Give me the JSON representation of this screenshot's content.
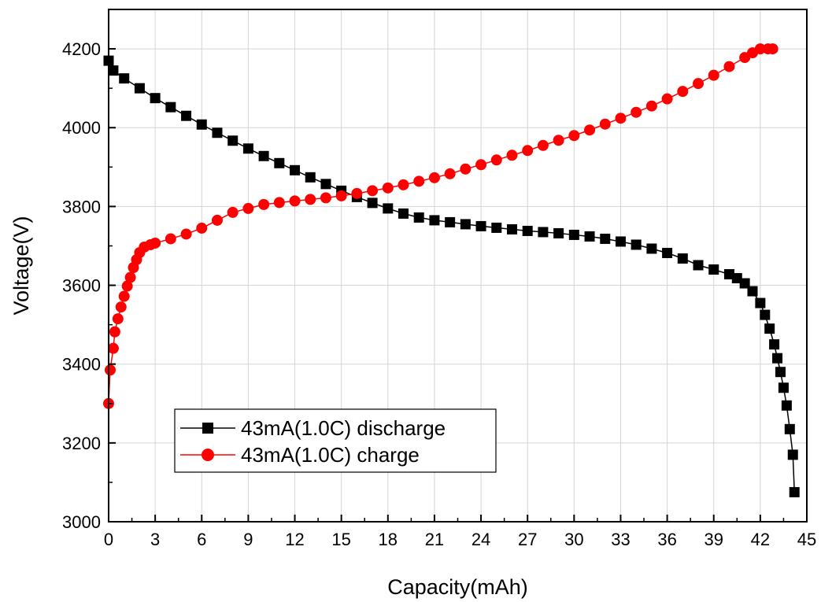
{
  "chart_data": {
    "type": "line",
    "title": "",
    "xlabel": "Capacity(mAh)",
    "ylabel": "Voltage(V)",
    "xlim": [
      0,
      45
    ],
    "ylim": [
      3000,
      4300
    ],
    "xticks": [
      0,
      3,
      6,
      9,
      12,
      15,
      18,
      21,
      24,
      27,
      30,
      33,
      36,
      39,
      42,
      45
    ],
    "yticks": [
      3000,
      3200,
      3400,
      3600,
      3800,
      4000,
      4200
    ],
    "grid": true,
    "legend_position": "bottom-left",
    "series": [
      {
        "name": "43mA(1.0C) discharge",
        "color": "#000000",
        "marker": "square",
        "x": [
          0,
          0.3,
          1,
          2,
          3,
          4,
          5,
          6,
          7,
          8,
          9,
          10,
          11,
          12,
          13,
          14,
          15,
          16,
          17,
          18,
          19,
          20,
          21,
          22,
          23,
          24,
          25,
          26,
          27,
          28,
          29,
          30,
          31,
          32,
          33,
          34,
          35,
          36,
          37,
          38,
          39,
          40,
          40.5,
          41,
          41.5,
          42,
          42.3,
          42.6,
          42.9,
          43.1,
          43.3,
          43.5,
          43.7,
          43.9,
          44.1,
          44.2
        ],
        "y": [
          4170,
          4145,
          4125,
          4100,
          4075,
          4052,
          4030,
          4008,
          3987,
          3967,
          3947,
          3928,
          3910,
          3892,
          3874,
          3857,
          3840,
          3824,
          3809,
          3795,
          3782,
          3772,
          3765,
          3760,
          3755,
          3750,
          3746,
          3742,
          3738,
          3735,
          3732,
          3728,
          3724,
          3718,
          3711,
          3703,
          3693,
          3682,
          3668,
          3651,
          3640,
          3628,
          3618,
          3605,
          3585,
          3555,
          3525,
          3490,
          3450,
          3415,
          3380,
          3340,
          3295,
          3235,
          3170,
          3075
        ]
      },
      {
        "name": "43mA(1.0C) charge",
        "color": "#ff0000",
        "marker": "circle",
        "x": [
          0,
          0.1,
          0.3,
          0.4,
          0.6,
          0.8,
          1.0,
          1.2,
          1.4,
          1.6,
          1.8,
          2.0,
          2.3,
          2.7,
          3,
          4,
          5,
          6,
          7,
          8,
          9,
          10,
          11,
          12,
          13,
          14,
          15,
          16,
          17,
          18,
          19,
          20,
          21,
          22,
          23,
          24,
          25,
          26,
          27,
          28,
          29,
          30,
          31,
          32,
          33,
          34,
          35,
          36,
          37,
          38,
          39,
          40,
          41,
          41.5,
          42,
          42.5,
          42.8
        ],
        "y": [
          3300,
          3385,
          3440,
          3482,
          3515,
          3545,
          3572,
          3598,
          3620,
          3645,
          3665,
          3683,
          3697,
          3703,
          3707,
          3718,
          3730,
          3745,
          3765,
          3785,
          3795,
          3805,
          3810,
          3814,
          3818,
          3822,
          3827,
          3833,
          3840,
          3847,
          3855,
          3864,
          3873,
          3883,
          3895,
          3906,
          3918,
          3930,
          3942,
          3955,
          3968,
          3980,
          3994,
          4009,
          4024,
          4039,
          4055,
          4073,
          4092,
          4112,
          4133,
          4155,
          4178,
          4190,
          4200,
          4200,
          4200
        ]
      }
    ]
  }
}
